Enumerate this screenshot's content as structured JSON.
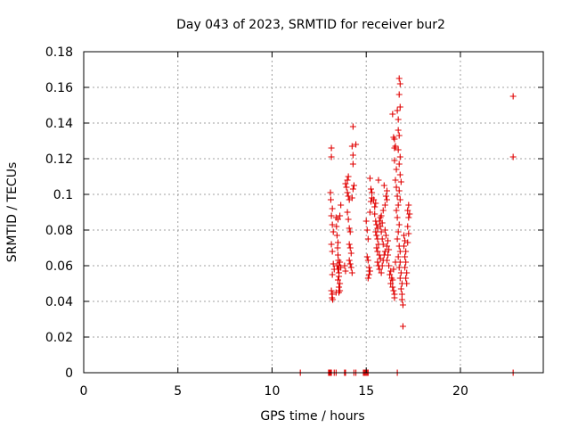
{
  "chart_data": {
    "type": "scatter",
    "title": "Day 043 of 2023, SRMTID for receiver bur2",
    "xlabel": "GPS time / hours",
    "ylabel": "SRMTID / TECUs",
    "xlim": [
      0,
      24.4
    ],
    "ylim": [
      0,
      0.18
    ],
    "x_ticks": [
      0,
      5,
      10,
      15,
      20
    ],
    "x_tick_labels": [
      "0",
      "5",
      "10",
      "15",
      "20"
    ],
    "y_ticks": [
      0,
      0.02,
      0.04,
      0.06,
      0.08,
      0.1,
      0.12,
      0.14,
      0.16,
      0.18
    ],
    "y_tick_labels": [
      "0",
      "0.02",
      "0.04",
      "0.06",
      "0.08",
      "0.1",
      "0.12",
      "0.14",
      "0.16",
      "0.18"
    ],
    "grid": true,
    "marker": "+",
    "color": "#e00000",
    "series": [
      {
        "name": "SRMTID",
        "points": [
          [
            11.5,
            0
          ],
          [
            13.0,
            0
          ],
          [
            13.05,
            0
          ],
          [
            13.1,
            0
          ],
          [
            13.15,
            0
          ],
          [
            13.3,
            0
          ],
          [
            13.4,
            0
          ],
          [
            13.85,
            0
          ],
          [
            13.9,
            0
          ],
          [
            14.35,
            0
          ],
          [
            14.45,
            0
          ],
          [
            14.85,
            0
          ],
          [
            14.9,
            0
          ],
          [
            14.95,
            0
          ],
          [
            15.0,
            0
          ],
          [
            15.05,
            0
          ],
          [
            15.1,
            0
          ],
          [
            16.65,
            0
          ],
          [
            22.8,
            0
          ],
          [
            13.15,
            0.126
          ],
          [
            13.15,
            0.121
          ],
          [
            13.1,
            0.101
          ],
          [
            13.12,
            0.097
          ],
          [
            13.2,
            0.092
          ],
          [
            13.15,
            0.088
          ],
          [
            13.2,
            0.083
          ],
          [
            13.25,
            0.079
          ],
          [
            13.15,
            0.072
          ],
          [
            13.2,
            0.068
          ],
          [
            13.25,
            0.061
          ],
          [
            13.3,
            0.058
          ],
          [
            13.2,
            0.055
          ],
          [
            13.15,
            0.046
          ],
          [
            13.2,
            0.044
          ],
          [
            13.18,
            0.042
          ],
          [
            13.22,
            0.041
          ],
          [
            13.4,
            0.087
          ],
          [
            13.42,
            0.082
          ],
          [
            13.45,
            0.077
          ],
          [
            13.5,
            0.073
          ],
          [
            13.48,
            0.07
          ],
          [
            13.5,
            0.066
          ],
          [
            13.52,
            0.063
          ],
          [
            13.45,
            0.06
          ],
          [
            13.5,
            0.058
          ],
          [
            13.55,
            0.056
          ],
          [
            13.55,
            0.054
          ],
          [
            13.5,
            0.052
          ],
          [
            13.6,
            0.05
          ],
          [
            13.55,
            0.048
          ],
          [
            13.6,
            0.046
          ],
          [
            13.55,
            0.045
          ],
          [
            13.4,
            0.045
          ],
          [
            13.6,
            0.062
          ],
          [
            13.55,
            0.06
          ],
          [
            13.65,
            0.059
          ],
          [
            13.6,
            0.088
          ],
          [
            13.65,
            0.094
          ],
          [
            13.5,
            0.086
          ],
          [
            13.9,
            0.106
          ],
          [
            13.95,
            0.104
          ],
          [
            14.0,
            0.101
          ],
          [
            14.05,
            0.099
          ],
          [
            14.1,
            0.097
          ],
          [
            14.0,
            0.09
          ],
          [
            14.05,
            0.086
          ],
          [
            14.1,
            0.081
          ],
          [
            14.15,
            0.079
          ],
          [
            14.1,
            0.072
          ],
          [
            14.15,
            0.07
          ],
          [
            14.2,
            0.067
          ],
          [
            14.1,
            0.063
          ],
          [
            14.15,
            0.061
          ],
          [
            14.2,
            0.059
          ],
          [
            14.25,
            0.056
          ],
          [
            13.9,
            0.057
          ],
          [
            13.85,
            0.06
          ],
          [
            14.0,
            0.108
          ],
          [
            14.05,
            0.11
          ],
          [
            14.3,
            0.138
          ],
          [
            14.25,
            0.127
          ],
          [
            14.3,
            0.122
          ],
          [
            14.45,
            0.128
          ],
          [
            14.3,
            0.117
          ],
          [
            14.35,
            0.105
          ],
          [
            14.3,
            0.103
          ],
          [
            14.25,
            0.098
          ],
          [
            15.0,
            0.085
          ],
          [
            15.05,
            0.08
          ],
          [
            15.1,
            0.075
          ],
          [
            15.05,
            0.065
          ],
          [
            15.1,
            0.063
          ],
          [
            15.15,
            0.059
          ],
          [
            15.2,
            0.057
          ],
          [
            15.15,
            0.055
          ],
          [
            15.1,
            0.053
          ],
          [
            15.2,
            0.09
          ],
          [
            15.25,
            0.096
          ],
          [
            15.3,
            0.098
          ],
          [
            15.25,
            0.103
          ],
          [
            15.2,
            0.109
          ],
          [
            15.3,
            0.101
          ],
          [
            15.4,
            0.097
          ],
          [
            15.45,
            0.093
          ],
          [
            15.5,
            0.095
          ],
          [
            15.45,
            0.089
          ],
          [
            15.5,
            0.085
          ],
          [
            15.55,
            0.083
          ],
          [
            15.6,
            0.081
          ],
          [
            15.5,
            0.079
          ],
          [
            15.55,
            0.077
          ],
          [
            15.6,
            0.075
          ],
          [
            15.65,
            0.072
          ],
          [
            15.55,
            0.07
          ],
          [
            15.6,
            0.068
          ],
          [
            15.7,
            0.066
          ],
          [
            15.75,
            0.064
          ],
          [
            15.6,
            0.062
          ],
          [
            15.65,
            0.06
          ],
          [
            15.7,
            0.058
          ],
          [
            15.8,
            0.056
          ],
          [
            15.85,
            0.06
          ],
          [
            15.9,
            0.063
          ],
          [
            15.95,
            0.066
          ],
          [
            16.0,
            0.068
          ],
          [
            15.9,
            0.072
          ],
          [
            15.85,
            0.075
          ],
          [
            15.8,
            0.079
          ],
          [
            15.75,
            0.082
          ],
          [
            15.7,
            0.085
          ],
          [
            15.8,
            0.088
          ],
          [
            15.9,
            0.091
          ],
          [
            16.0,
            0.094
          ],
          [
            16.1,
            0.097
          ],
          [
            16.05,
            0.099
          ],
          [
            16.1,
            0.102
          ],
          [
            15.95,
            0.105
          ],
          [
            15.65,
            0.108
          ],
          [
            15.75,
            0.087
          ],
          [
            15.85,
            0.084
          ],
          [
            16.0,
            0.08
          ],
          [
            16.05,
            0.077
          ],
          [
            16.15,
            0.074
          ],
          [
            16.1,
            0.071
          ],
          [
            16.2,
            0.069
          ],
          [
            16.15,
            0.066
          ],
          [
            16.1,
            0.063
          ],
          [
            16.2,
            0.06
          ],
          [
            16.3,
            0.057
          ],
          [
            16.25,
            0.055
          ],
          [
            16.35,
            0.053
          ],
          [
            16.3,
            0.05
          ],
          [
            16.4,
            0.048
          ],
          [
            16.45,
            0.046
          ],
          [
            16.5,
            0.044
          ],
          [
            16.5,
            0.042
          ],
          [
            16.4,
            0.052
          ],
          [
            16.45,
            0.058
          ],
          [
            16.55,
            0.062
          ],
          [
            16.5,
            0.131
          ],
          [
            16.55,
            0.127
          ],
          [
            16.5,
            0.119
          ],
          [
            16.6,
            0.114
          ],
          [
            16.55,
            0.108
          ],
          [
            16.6,
            0.104
          ],
          [
            16.65,
            0.099
          ],
          [
            16.7,
            0.094
          ],
          [
            16.6,
            0.091
          ],
          [
            16.65,
            0.087
          ],
          [
            16.75,
            0.083
          ],
          [
            16.7,
            0.079
          ],
          [
            16.65,
            0.075
          ],
          [
            16.75,
            0.071
          ],
          [
            16.8,
            0.068
          ],
          [
            16.7,
            0.065
          ],
          [
            16.8,
            0.062
          ],
          [
            16.75,
            0.059
          ],
          [
            16.85,
            0.056
          ],
          [
            16.8,
            0.053
          ],
          [
            16.9,
            0.05
          ],
          [
            16.85,
            0.047
          ],
          [
            16.9,
            0.044
          ],
          [
            16.9,
            0.041
          ],
          [
            16.95,
            0.038
          ],
          [
            16.95,
            0.026
          ],
          [
            16.65,
            0.147
          ],
          [
            16.7,
            0.142
          ],
          [
            16.7,
            0.136
          ],
          [
            16.75,
            0.133
          ],
          [
            16.7,
            0.125
          ],
          [
            16.8,
            0.121
          ],
          [
            16.75,
            0.117
          ],
          [
            16.8,
            0.111
          ],
          [
            16.85,
            0.107
          ],
          [
            16.75,
            0.102
          ],
          [
            16.8,
            0.097
          ],
          [
            16.75,
            0.165
          ],
          [
            16.8,
            0.162
          ],
          [
            16.75,
            0.156
          ],
          [
            16.8,
            0.149
          ],
          [
            16.4,
            0.145
          ],
          [
            16.45,
            0.132
          ],
          [
            16.5,
            0.126
          ],
          [
            17.0,
            0.077
          ],
          [
            17.05,
            0.074
          ],
          [
            17.0,
            0.071
          ],
          [
            17.1,
            0.068
          ],
          [
            17.05,
            0.065
          ],
          [
            17.1,
            0.062
          ],
          [
            17.05,
            0.059
          ],
          [
            17.15,
            0.056
          ],
          [
            17.1,
            0.053
          ],
          [
            17.15,
            0.05
          ],
          [
            17.2,
            0.073
          ],
          [
            17.25,
            0.078
          ],
          [
            17.2,
            0.082
          ],
          [
            17.25,
            0.087
          ],
          [
            17.3,
            0.089
          ],
          [
            17.2,
            0.091
          ],
          [
            17.25,
            0.094
          ],
          [
            22.8,
            0.155
          ],
          [
            22.8,
            0.121
          ]
        ]
      }
    ]
  }
}
